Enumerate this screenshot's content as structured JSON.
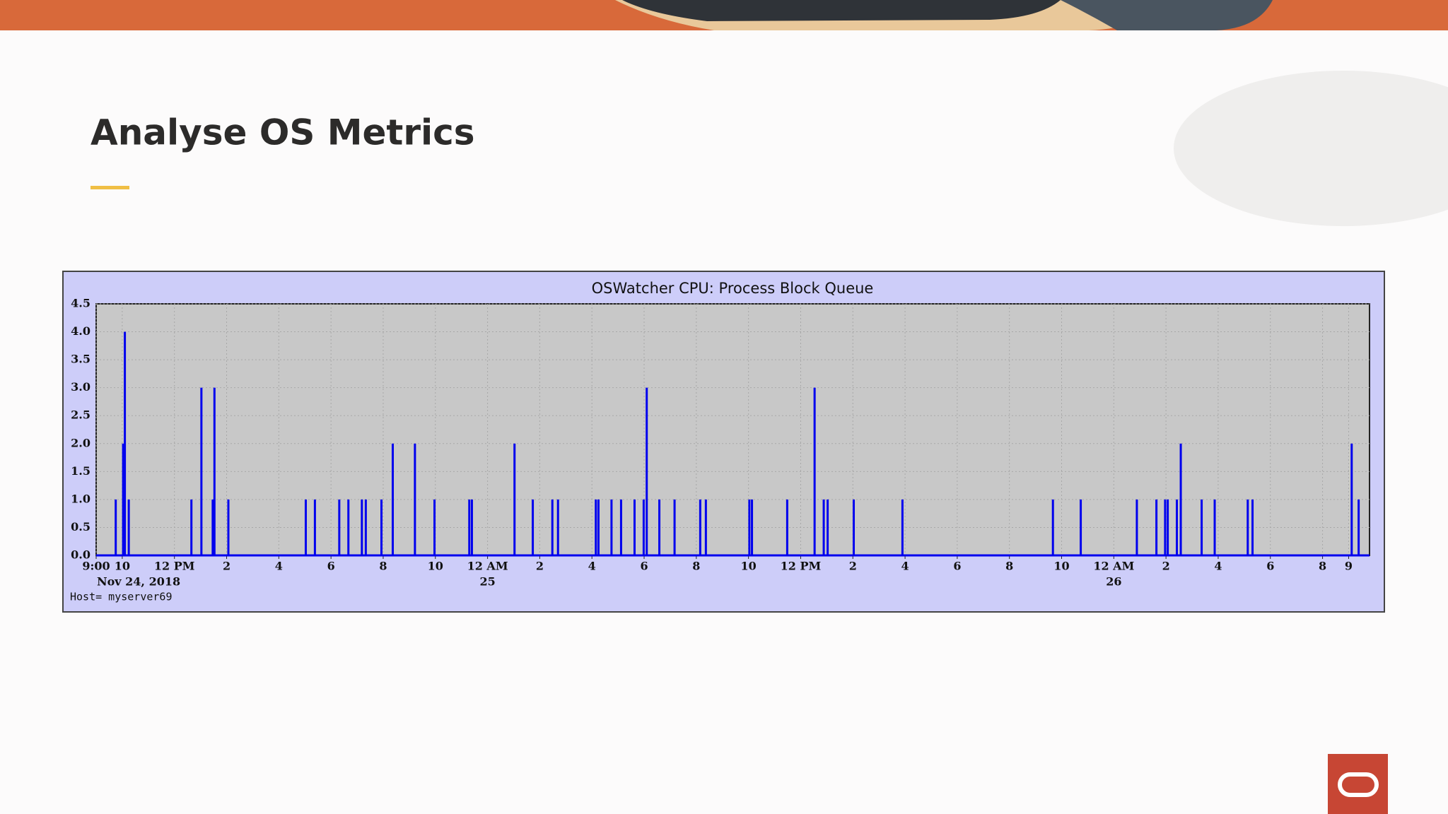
{
  "slide": {
    "title": "Analyse OS Metrics"
  },
  "chart_data": {
    "type": "bar",
    "title": "OSWatcher CPU: Process Block Queue",
    "footnote": "Host= myserver69",
    "color": "#0000ee",
    "grid": true,
    "x": [
      "2018-11-24T09:45",
      "2018-11-24T10:02",
      "2018-11-24T10:06",
      "2018-11-24T10:15",
      "2018-11-24T12:39",
      "2018-11-24T13:02",
      "2018-11-24T13:28",
      "2018-11-24T13:32",
      "2018-11-24T14:04",
      "2018-11-24T17:02",
      "2018-11-24T17:23",
      "2018-11-24T18:19",
      "2018-11-24T18:40",
      "2018-11-24T19:11",
      "2018-11-24T19:20",
      "2018-11-24T19:56",
      "2018-11-24T20:22",
      "2018-11-24T21:13",
      "2018-11-24T21:58",
      "2018-11-24T23:18",
      "2018-11-24T23:24",
      "2018-11-25T01:02",
      "2018-11-25T01:44",
      "2018-11-25T02:29",
      "2018-11-25T02:42",
      "2018-11-25T04:09",
      "2018-11-25T04:15",
      "2018-11-25T04:45",
      "2018-11-25T05:07",
      "2018-11-25T05:38",
      "2018-11-25T05:59",
      "2018-11-25T06:06",
      "2018-11-25T06:35",
      "2018-11-25T07:10",
      "2018-11-25T08:09",
      "2018-11-25T08:22",
      "2018-11-25T10:02",
      "2018-11-25T10:08",
      "2018-11-25T11:29",
      "2018-11-25T12:32",
      "2018-11-25T12:53",
      "2018-11-25T13:02",
      "2018-11-25T14:02",
      "2018-11-25T15:54",
      "2018-11-25T21:40",
      "2018-11-25T22:44",
      "2018-11-26T00:53",
      "2018-11-26T01:38",
      "2018-11-26T01:58",
      "2018-11-26T02:04",
      "2018-11-26T02:25",
      "2018-11-26T02:34",
      "2018-11-26T03:22",
      "2018-11-26T03:52",
      "2018-11-26T05:08",
      "2018-11-26T05:19",
      "2018-11-26T09:07",
      "2018-11-26T09:23"
    ],
    "values": [
      1,
      2,
      4,
      1,
      1,
      3,
      1,
      3,
      1,
      1,
      1,
      1,
      1,
      1,
      1,
      1,
      2,
      2,
      1,
      1,
      1,
      2,
      1,
      1,
      1,
      1,
      1,
      1,
      1,
      1,
      1,
      3,
      1,
      1,
      1,
      1,
      1,
      1,
      1,
      3,
      1,
      1,
      1,
      1,
      1,
      1,
      1,
      1,
      1,
      1,
      1,
      2,
      1,
      1,
      1,
      1,
      2,
      1
    ],
    "xlim": [
      "2018-11-24T09:00",
      "2018-11-26T09:48"
    ],
    "xticks": [
      {
        "value": "2018-11-24T09:00",
        "label": "9:00"
      },
      {
        "value": "2018-11-24T10:00",
        "label": "10"
      },
      {
        "value": "2018-11-24T12:00",
        "label": "12 PM"
      },
      {
        "value": "2018-11-24T14:00",
        "label": "2"
      },
      {
        "value": "2018-11-24T16:00",
        "label": "4"
      },
      {
        "value": "2018-11-24T18:00",
        "label": "6"
      },
      {
        "value": "2018-11-24T20:00",
        "label": "8"
      },
      {
        "value": "2018-11-24T22:00",
        "label": "10"
      },
      {
        "value": "2018-11-25T00:00",
        "label": "12 AM"
      },
      {
        "value": "2018-11-25T02:00",
        "label": "2"
      },
      {
        "value": "2018-11-25T04:00",
        "label": "4"
      },
      {
        "value": "2018-11-25T06:00",
        "label": "6"
      },
      {
        "value": "2018-11-25T08:00",
        "label": "8"
      },
      {
        "value": "2018-11-25T10:00",
        "label": "10"
      },
      {
        "value": "2018-11-25T12:00",
        "label": "12 PM"
      },
      {
        "value": "2018-11-25T14:00",
        "label": "2"
      },
      {
        "value": "2018-11-25T16:00",
        "label": "4"
      },
      {
        "value": "2018-11-25T18:00",
        "label": "6"
      },
      {
        "value": "2018-11-25T20:00",
        "label": "8"
      },
      {
        "value": "2018-11-25T22:00",
        "label": "10"
      },
      {
        "value": "2018-11-26T00:00",
        "label": "12 AM"
      },
      {
        "value": "2018-11-26T02:00",
        "label": "2"
      },
      {
        "value": "2018-11-26T04:00",
        "label": "4"
      },
      {
        "value": "2018-11-26T06:00",
        "label": "6"
      },
      {
        "value": "2018-11-26T08:00",
        "label": "8"
      },
      {
        "value": "2018-11-26T09:00",
        "label": "9"
      }
    ],
    "date_labels": [
      {
        "value": "2018-11-24T09:00",
        "label": "Nov 24, 2018"
      },
      {
        "value": "2018-11-25T00:00",
        "label": "25"
      },
      {
        "value": "2018-11-26T00:00",
        "label": "26"
      }
    ],
    "ylim": [
      0,
      4.5
    ],
    "yticks": [
      {
        "value": 0,
        "label": "0.0"
      },
      0.5,
      {
        "value": 1,
        "label": "1.0"
      },
      1.5,
      {
        "value": 2,
        "label": "2.0"
      },
      2.5,
      {
        "value": 3,
        "label": "3.0"
      },
      3.5,
      {
        "value": 4,
        "label": "4.0"
      },
      4.5
    ]
  }
}
